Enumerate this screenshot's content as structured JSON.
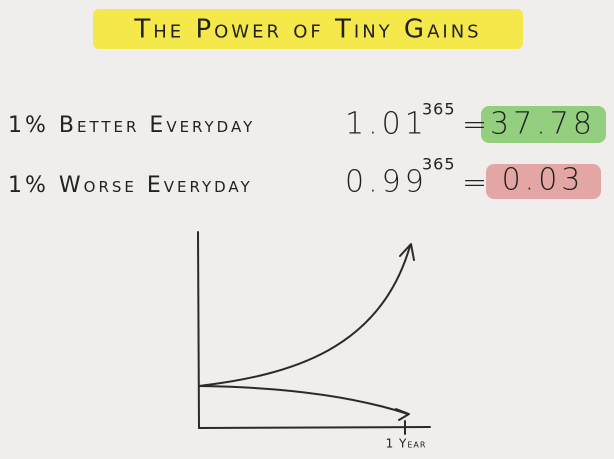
{
  "title": "The Power of Tiny Gains",
  "rows": [
    {
      "label": "1% Better Everyday",
      "base": "1.01",
      "exponent": "365",
      "equals": "=",
      "result": "37.78"
    },
    {
      "label": "1% Worse Everyday",
      "base": "0.99",
      "exponent": "365",
      "equals": "=",
      "result": "0.03"
    }
  ],
  "chart": {
    "x_label": "1 Year"
  }
}
